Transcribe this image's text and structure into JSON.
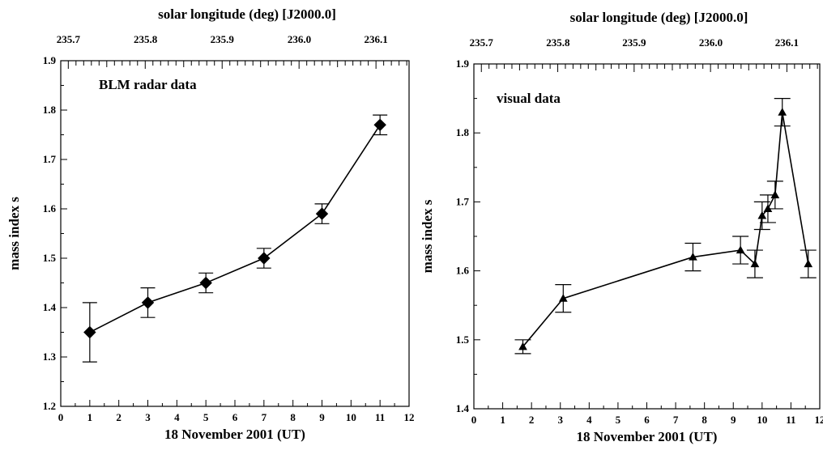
{
  "chart_data": [
    {
      "type": "line",
      "annotation": "BLM radar data",
      "top_axis_label": "solar longitude (deg) [J2000.0]",
      "xlabel": "18 November 2001 (UT)",
      "ylabel": "mass index s",
      "xlim": [
        0,
        12
      ],
      "ylim": [
        1.2,
        1.9
      ],
      "x_ticks": [
        0,
        1,
        2,
        3,
        4,
        5,
        6,
        7,
        8,
        9,
        10,
        11,
        12
      ],
      "y_ticks": [
        1.2,
        1.3,
        1.4,
        1.5,
        1.6,
        1.7,
        1.8,
        1.9
      ],
      "top_ticks": [
        {
          "label": "235.7",
          "x": 0.26
        },
        {
          "label": "235.8",
          "x": 2.92
        },
        {
          "label": "235.9",
          "x": 5.56
        },
        {
          "label": "236.0",
          "x": 8.22
        },
        {
          "label": "236.1",
          "x": 10.86
        }
      ],
      "marker": "diamond",
      "series": [
        {
          "x": [
            1,
            3,
            5,
            7,
            9,
            11
          ],
          "y": [
            1.35,
            1.41,
            1.45,
            1.5,
            1.59,
            1.77
          ],
          "err_low": [
            1.29,
            1.38,
            1.43,
            1.48,
            1.57,
            1.75
          ],
          "err_high": [
            1.41,
            1.44,
            1.47,
            1.52,
            1.61,
            1.79
          ]
        }
      ]
    },
    {
      "type": "line",
      "annotation": "visual data",
      "top_axis_label": "solar longitude (deg) [J2000.0]",
      "xlabel": "18 November 2001 (UT)",
      "ylabel": "mass index s",
      "xlim": [
        0,
        12
      ],
      "ylim": [
        1.4,
        1.9
      ],
      "x_ticks": [
        0,
        1,
        2,
        3,
        4,
        5,
        6,
        7,
        8,
        9,
        10,
        11,
        12
      ],
      "y_ticks": [
        1.4,
        1.5,
        1.6,
        1.7,
        1.8,
        1.9
      ],
      "top_ticks": [
        {
          "label": "235.7",
          "x": 0.26
        },
        {
          "label": "235.8",
          "x": 2.92
        },
        {
          "label": "235.9",
          "x": 5.56
        },
        {
          "label": "236.0",
          "x": 8.22
        },
        {
          "label": "236.1",
          "x": 10.86
        }
      ],
      "marker": "triangle",
      "series": [
        {
          "x": [
            1.7,
            3.1,
            7.6,
            9.25,
            9.75,
            10.0,
            10.2,
            10.45,
            10.7,
            11.6
          ],
          "y": [
            1.49,
            1.56,
            1.62,
            1.63,
            1.61,
            1.68,
            1.69,
            1.71,
            1.83,
            1.61
          ],
          "err_low": [
            1.48,
            1.54,
            1.6,
            1.61,
            1.59,
            1.66,
            1.67,
            1.69,
            1.81,
            1.59
          ],
          "err_high": [
            1.5,
            1.58,
            1.64,
            1.65,
            1.63,
            1.7,
            1.71,
            1.73,
            1.85,
            1.63
          ]
        }
      ]
    }
  ]
}
